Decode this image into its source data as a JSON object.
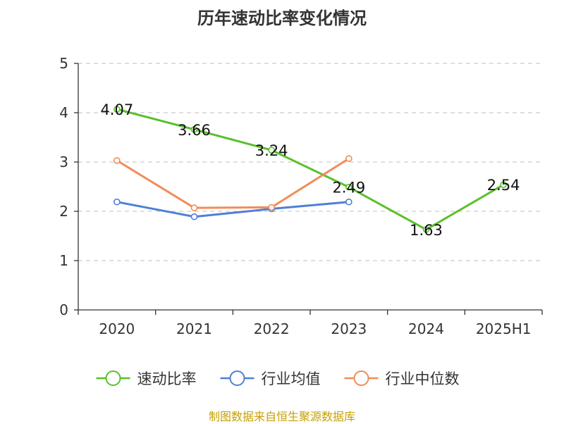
{
  "title": "历年速动比率变化情况",
  "source": "制图数据来自恒生聚源数据库",
  "chart_data": {
    "type": "line",
    "title": "历年速动比率变化情况",
    "categories": [
      "2020",
      "2021",
      "2022",
      "2023",
      "2024",
      "2025H1"
    ],
    "ylim": [
      0,
      5
    ],
    "yticks": [
      0,
      1,
      2,
      3,
      4,
      5
    ],
    "grid": true,
    "legend_position": "bottom",
    "series": [
      {
        "name": "速动比率",
        "color": "#5ac02a",
        "values": [
          4.07,
          3.66,
          3.24,
          2.49,
          1.63,
          2.54
        ],
        "show_labels": true
      },
      {
        "name": "行业均值",
        "color": "#4f7fd8",
        "values": [
          2.19,
          1.89,
          2.05,
          2.19,
          null,
          null
        ],
        "show_labels": false
      },
      {
        "name": "行业中位数",
        "color": "#f28c57",
        "values": [
          3.03,
          2.07,
          2.08,
          3.07,
          null,
          null
        ],
        "show_labels": false
      }
    ]
  }
}
